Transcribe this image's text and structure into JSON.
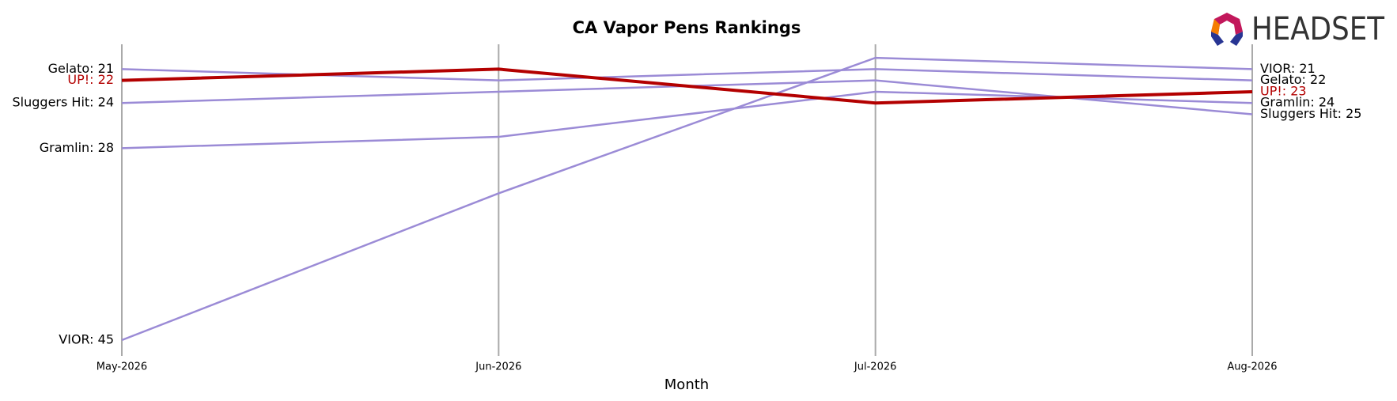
{
  "chart_data": {
    "type": "line",
    "title": "CA Vapor Pens Rankings",
    "x_label": "Month",
    "logo": "HEADSET",
    "categories": [
      "May-2026",
      "Jun-2026",
      "Jul-2026",
      "Aug-2026"
    ],
    "ylim": [
      46.4,
      18.8
    ],
    "inverted": true,
    "highlight": "UP!",
    "series": [
      {
        "name": "VIOR",
        "color": "#9b8bd6",
        "values": [
          45,
          32,
          20,
          21
        ],
        "start_label": "VIOR: 45",
        "end_label": "VIOR: 21"
      },
      {
        "name": "Gelato",
        "color": "#9b8bd6",
        "values": [
          21,
          22,
          21,
          22
        ],
        "start_label": "Gelato: 21",
        "end_label": "Gelato: 22"
      },
      {
        "name": "Sluggers Hit",
        "color": "#9b8bd6",
        "values": [
          24,
          23,
          22,
          25
        ],
        "start_label": "Sluggers Hit: 24",
        "end_label": "Sluggers Hit: 25"
      },
      {
        "name": "Gramlin",
        "color": "#9b8bd6",
        "values": [
          28,
          27,
          23,
          24
        ],
        "start_label": "Gramlin: 28",
        "end_label": "Gramlin: 24"
      },
      {
        "name": "UP!",
        "color": "#b30000",
        "values": [
          22,
          21,
          24,
          23
        ],
        "start_label": "UP!: 22",
        "end_label": "UP!: 23"
      }
    ]
  }
}
